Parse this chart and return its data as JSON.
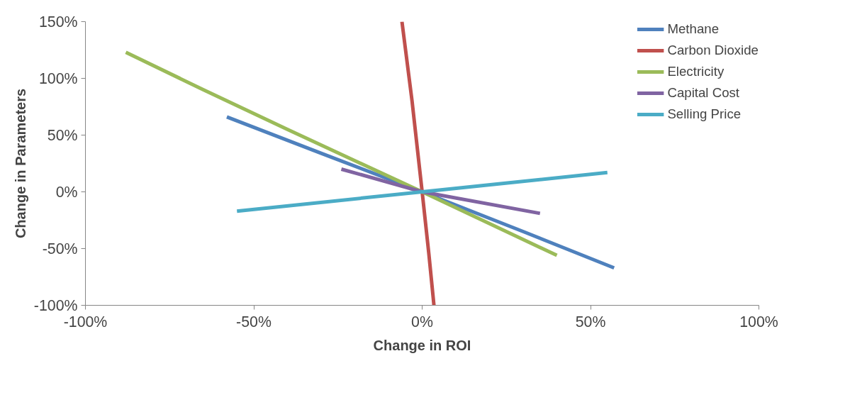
{
  "chart_data": {
    "type": "line",
    "xlabel": "Change in ROI",
    "ylabel": "Change in Parameters",
    "xlim": [
      -100,
      100
    ],
    "ylim": [
      -100,
      150
    ],
    "xticks": [
      {
        "value": -100,
        "label": "-100%"
      },
      {
        "value": -50,
        "label": "-50%"
      },
      {
        "value": 0,
        "label": "0%"
      },
      {
        "value": 50,
        "label": "50%"
      },
      {
        "value": 100,
        "label": "100%"
      }
    ],
    "yticks": [
      {
        "value": -100,
        "label": "-100%"
      },
      {
        "value": -50,
        "label": "-50%"
      },
      {
        "value": 0,
        "label": "0%"
      },
      {
        "value": 50,
        "label": "50%"
      },
      {
        "value": 100,
        "label": "100%"
      },
      {
        "value": 150,
        "label": "150%"
      }
    ],
    "grid": false,
    "legend": "top right",
    "marker": "none",
    "line_style": "solid",
    "series": [
      {
        "name": "Methane",
        "color": "#4f81bd",
        "x": [
          -58,
          -30,
          0,
          30,
          57
        ],
        "values": [
          66,
          34,
          0,
          -35,
          -67
        ]
      },
      {
        "name": "Carbon Dioxide",
        "color": "#c0504d",
        "x": [
          -6,
          -3,
          0,
          2,
          3.5
        ],
        "values": [
          150,
          80,
          0,
          -55,
          -100
        ]
      },
      {
        "name": "Electricity",
        "color": "#9bbb59",
        "x": [
          -88,
          -65,
          -40,
          0,
          40
        ],
        "values": [
          123,
          90,
          55,
          0,
          -56
        ]
      },
      {
        "name": "Capital Cost",
        "color": "#8064a2",
        "x": [
          -24,
          0,
          35
        ],
        "values": [
          20,
          0,
          -19
        ]
      },
      {
        "name": "Selling Price",
        "color": "#4bacc6",
        "x": [
          -55,
          0,
          55
        ],
        "values": [
          -17,
          0,
          17
        ]
      }
    ]
  }
}
